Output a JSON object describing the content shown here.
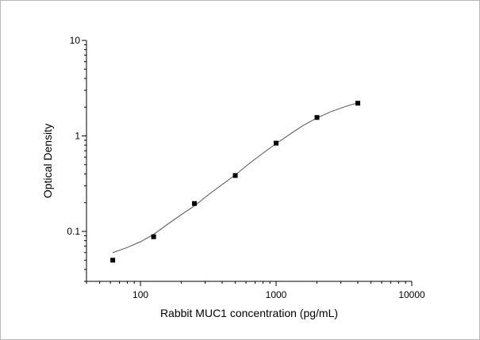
{
  "chart_data": {
    "type": "scatter",
    "title": "",
    "xlabel": "Rabbit MUC1 concentration (pg/mL)",
    "ylabel": "Optical Density",
    "xscale": "log",
    "yscale": "log",
    "xlim": [
      40,
      10000
    ],
    "ylim": [
      0.03,
      10
    ],
    "x_ticks": [
      100,
      1000,
      10000
    ],
    "x_tick_labels": [
      "100",
      "1000",
      "10000"
    ],
    "y_ticks": [
      0.1,
      1,
      10
    ],
    "y_tick_labels": [
      "0.1",
      "1",
      "10"
    ],
    "grid": false,
    "legend": "none",
    "series": [
      {
        "x": [
          62.5,
          125,
          250,
          500,
          1000,
          2000,
          4000
        ],
        "values": [
          0.05,
          0.088,
          0.196,
          0.385,
          0.84,
          1.56,
          2.2
        ]
      }
    ],
    "fit_curve": {
      "type": "four-parameter logistic",
      "x": [
        62.5,
        80,
        100,
        125,
        160,
        200,
        250,
        320,
        400,
        500,
        640,
        800,
        1000,
        1300,
        1600,
        2000,
        2500,
        3200,
        4000
      ],
      "values": [
        0.06,
        0.068,
        0.078,
        0.093,
        0.12,
        0.15,
        0.185,
        0.245,
        0.31,
        0.39,
        0.52,
        0.66,
        0.83,
        1.07,
        1.3,
        1.54,
        1.78,
        2.02,
        2.22
      ]
    },
    "colors": {
      "points": "#000000",
      "curve": "#555555",
      "axes": "#000000"
    }
  }
}
